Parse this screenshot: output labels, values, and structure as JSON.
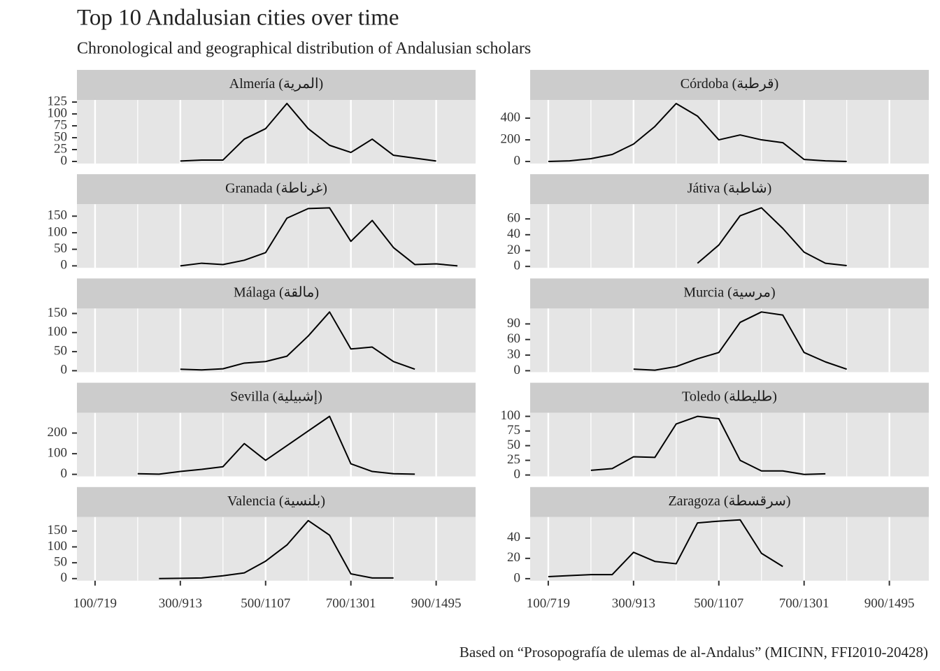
{
  "title": "Top 10 Andalusian cities over time",
  "subtitle": "Chronological and geographical distribution of Andalusian scholars",
  "caption": "Based on “Prosopografía de ulemas de al-Andalus” (MICINN, FFI2010-20428)",
  "chart_data": [
    {
      "type": "line",
      "title": "Almería (المرية)",
      "x": [
        300,
        350,
        400,
        450,
        500,
        550,
        600,
        650,
        700,
        750,
        800,
        850,
        900
      ],
      "values": [
        1,
        3,
        3,
        47,
        69,
        122,
        69,
        34,
        19,
        47,
        13,
        7,
        1
      ],
      "xlim": [
        57.5,
        992.5
      ],
      "xticks": [
        100,
        300,
        500,
        700,
        900
      ],
      "xminor": [
        200,
        400,
        600,
        800
      ],
      "ylim": [
        -4.4,
        129.4
      ],
      "yticks": [
        0,
        25,
        50,
        75,
        100,
        125
      ],
      "color": "#000000"
    },
    {
      "type": "line",
      "title": "Córdoba (قرطبة)",
      "x": [
        100,
        150,
        200,
        250,
        300,
        350,
        400,
        450,
        500,
        550,
        600,
        650,
        700,
        750,
        800
      ],
      "values": [
        0,
        6,
        26,
        65,
        161,
        323,
        535,
        419,
        200,
        245,
        200,
        174,
        19,
        6,
        0
      ],
      "xlim": [
        57.5,
        992.5
      ],
      "xticks": [
        100,
        300,
        500,
        700,
        900
      ],
      "xminor": [
        200,
        400,
        600,
        800
      ],
      "ylim": [
        -19,
        568
      ],
      "yticks": [
        0,
        200,
        400
      ],
      "color": "#000000"
    },
    {
      "type": "line",
      "title": "Granada (غرناطة)",
      "x": [
        300,
        350,
        400,
        450,
        500,
        550,
        600,
        650,
        700,
        750,
        800,
        850,
        900,
        950
      ],
      "values": [
        0,
        8,
        4,
        17,
        40,
        144,
        173,
        175,
        74,
        137,
        55,
        4,
        6,
        0
      ],
      "xlim": [
        57.5,
        992.5
      ],
      "xticks": [
        100,
        300,
        500,
        700,
        900
      ],
      "xminor": [
        200,
        400,
        600,
        800
      ],
      "ylim": [
        -6,
        186
      ],
      "yticks": [
        0,
        50,
        100,
        150
      ],
      "color": "#000000"
    },
    {
      "type": "line",
      "title": "Játiva (شاطبة)",
      "x": [
        450,
        500,
        550,
        600,
        650,
        700,
        750,
        800
      ],
      "values": [
        4,
        27,
        64,
        74,
        48,
        18,
        4,
        1
      ],
      "xlim": [
        57.5,
        992.5
      ],
      "xticks": [
        100,
        300,
        500,
        700,
        900
      ],
      "xminor": [
        200,
        400,
        600,
        800
      ],
      "ylim": [
        -1.8,
        78.5
      ],
      "yticks": [
        0,
        20,
        40,
        60
      ],
      "color": "#000000"
    },
    {
      "type": "line",
      "title": "Málaga (مالقة)",
      "x": [
        300,
        350,
        400,
        450,
        500,
        550,
        600,
        650,
        700,
        750,
        800,
        850
      ],
      "values": [
        4,
        2,
        5,
        20,
        24,
        38,
        91,
        154,
        57,
        62,
        24,
        4
      ],
      "xlim": [
        57.5,
        992.5
      ],
      "xticks": [
        100,
        300,
        500,
        700,
        900
      ],
      "xminor": [
        200,
        400,
        600,
        800
      ],
      "ylim": [
        -3.7,
        163
      ],
      "yticks": [
        0,
        50,
        100,
        150
      ],
      "color": "#000000"
    },
    {
      "type": "line",
      "title": "Murcia (مرسية)",
      "x": [
        300,
        350,
        400,
        450,
        500,
        550,
        600,
        650,
        700,
        750,
        800
      ],
      "values": [
        3,
        1,
        8,
        23,
        35,
        93,
        113,
        107,
        35,
        17,
        3
      ],
      "xlim": [
        57.5,
        992.5
      ],
      "xticks": [
        100,
        300,
        500,
        700,
        900
      ],
      "xminor": [
        200,
        400,
        600,
        800
      ],
      "ylim": [
        -2.7,
        119.6
      ],
      "yticks": [
        0,
        30,
        60,
        90
      ],
      "color": "#000000"
    },
    {
      "type": "line",
      "title": "Sevilla (إشبيلية)",
      "x": [
        200,
        250,
        300,
        350,
        400,
        450,
        500,
        550,
        600,
        650,
        700,
        750,
        800,
        850
      ],
      "values": [
        3,
        1,
        14,
        24,
        37,
        149,
        68,
        139,
        210,
        281,
        51,
        14,
        3,
        1
      ],
      "xlim": [
        57.5,
        992.5
      ],
      "xticks": [
        100,
        300,
        500,
        700,
        900
      ],
      "xminor": [
        200,
        400,
        600,
        800
      ],
      "ylim": [
        -10,
        298
      ],
      "yticks": [
        0,
        100,
        200
      ],
      "color": "#000000"
    },
    {
      "type": "line",
      "title": "Toledo (طليطلة)",
      "x": [
        200,
        250,
        300,
        350,
        400,
        450,
        500,
        550,
        600,
        650,
        700,
        750
      ],
      "values": [
        8,
        11,
        31,
        30,
        87,
        100,
        96,
        25,
        7,
        7,
        1,
        2
      ],
      "xlim": [
        57.5,
        992.5
      ],
      "xticks": [
        100,
        300,
        500,
        700,
        900
      ],
      "xminor": [
        200,
        400,
        600,
        800
      ],
      "ylim": [
        -2.4,
        106
      ],
      "yticks": [
        0,
        25,
        50,
        75,
        100
      ],
      "color": "#000000"
    },
    {
      "type": "line",
      "title": "Valencia (بلنسية)",
      "x": [
        250,
        300,
        350,
        400,
        450,
        500,
        550,
        600,
        650,
        700,
        750,
        800
      ],
      "values": [
        0,
        1,
        2,
        9,
        18,
        55,
        106,
        183,
        137,
        15,
        2,
        2
      ],
      "xlim": [
        57.5,
        992.5
      ],
      "xticks": [
        {
          "value": 100,
          "label": "100/719"
        },
        {
          "value": 300,
          "label": "300/913"
        },
        {
          "value": 500,
          "label": "500/1107"
        },
        {
          "value": 700,
          "label": "700/1301"
        },
        {
          "value": 900,
          "label": "900/1495"
        }
      ],
      "xminor": [
        200,
        400,
        600,
        800
      ],
      "ylim": [
        -6.6,
        194
      ],
      "yticks": [
        0,
        50,
        100,
        150
      ],
      "color": "#000000"
    },
    {
      "type": "line",
      "title": "Zaragoza (سرقسطة)",
      "x": [
        100,
        150,
        200,
        250,
        300,
        350,
        400,
        450,
        500,
        550,
        600,
        650
      ],
      "values": [
        2,
        3,
        4,
        4,
        26,
        17,
        14.7,
        55,
        56.7,
        58,
        25,
        12
      ],
      "xlim": [
        57.5,
        992.5
      ],
      "xticks": [
        {
          "value": 100,
          "label": "100/719"
        },
        {
          "value": 300,
          "label": "300/913"
        },
        {
          "value": 500,
          "label": "500/1107"
        },
        {
          "value": 700,
          "label": "700/1301"
        },
        {
          "value": 900,
          "label": "900/1495"
        }
      ],
      "xminor": [
        200,
        400,
        600,
        800
      ],
      "ylim": [
        -2,
        60.7
      ],
      "yticks": [
        0,
        20,
        40
      ],
      "color": "#000000"
    }
  ]
}
